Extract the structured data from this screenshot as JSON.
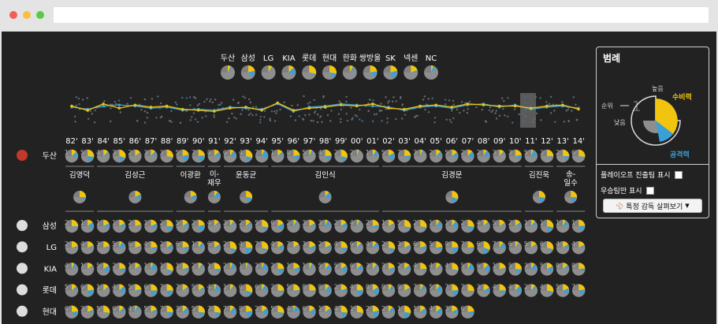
{
  "browser": {
    "url": ""
  },
  "legend": {
    "title": "범례",
    "high": "높음",
    "low": "낮음",
    "rank": "순위",
    "rank_value": "1",
    "defense": "수비력",
    "offense": "공격력",
    "playoff_label": "플레이오프 진출팀 표시",
    "champion_label": "우승팀만 표시",
    "manager_button": "특정 감독 살펴보기",
    "colors": {
      "defense": "#f1c40f",
      "offense": "#3aa0d8",
      "base": "#8e8e8e",
      "track": "#d9d9d9"
    }
  },
  "top_teams": [
    "두산",
    "삼성",
    "LG",
    "KIA",
    "롯데",
    "현대",
    "한화",
    "쌍방울",
    "SK",
    "넥센",
    "NC"
  ],
  "years": [
    "82'",
    "83'",
    "84'",
    "85'",
    "86'",
    "87'",
    "88'",
    "89'",
    "90'",
    "91'",
    "92'",
    "93'",
    "94'",
    "95'",
    "96'",
    "97'",
    "98'",
    "99'",
    "00'",
    "01'",
    "02'",
    "03'",
    "04'",
    "05'",
    "06'",
    "07'",
    "08'",
    "09'",
    "10'",
    "11'",
    "12'",
    "13'",
    "14'"
  ],
  "doosan": {
    "name": "두산",
    "ranks": [
      "1",
      "5",
      "4",
      "3",
      "2",
      "3",
      "3",
      "5",
      "7",
      "8",
      "6",
      "4",
      "7",
      "1",
      "8",
      "5",
      "4",
      "2",
      "2",
      "1",
      "5",
      "7",
      "3",
      "2",
      "5",
      "2",
      "2",
      "3",
      "3",
      "5",
      "3",
      "2",
      "6"
    ],
    "managers": [
      "김영덕",
      "김성근",
      "이광환",
      "이-재우",
      "윤동균",
      "김인식",
      "김경문",
      "김진욱",
      "송-일수"
    ]
  },
  "team_rows": [
    {
      "name": "삼성",
      "ranks": [
        "2",
        "1",
        "1",
        "1",
        "2",
        "1",
        "2",
        "5",
        "2",
        "4",
        "3",
        "2",
        "5",
        "6",
        "2",
        "3",
        "3",
        "2",
        "4",
        "2",
        "1",
        "5",
        "2",
        "1",
        "1",
        "2",
        "4",
        "5",
        "2",
        "1",
        "1",
        "1",
        "1"
      ]
    },
    {
      "name": "LG",
      "ranks": [
        "2",
        "4",
        "3",
        "5",
        "6",
        "4",
        "2",
        "6",
        "1",
        "6",
        "2",
        "4",
        "7",
        "4",
        "7",
        "3",
        "2",
        "4",
        "6",
        "4",
        "2",
        "3",
        "6",
        "5",
        "8",
        "7",
        "6",
        "7",
        "6",
        "5",
        "6",
        "4",
        "4"
      ]
    },
    {
      "name": "KIA",
      "ranks": [
        "4",
        "1",
        "5",
        "2",
        "1",
        "1",
        "1",
        "1",
        "2",
        "1",
        "2",
        "1",
        "3",
        "2",
        "1",
        "1",
        "5",
        "5",
        "6",
        "3",
        "3",
        "2",
        "4",
        "4",
        "4",
        "5",
        "6",
        "1",
        "5",
        "3",
        "5",
        "8",
        "8"
      ]
    },
    {
      "name": "롯데",
      "ranks": [
        "5",
        "6",
        "1",
        "4",
        "5",
        "6",
        "7",
        "7",
        "5",
        "4",
        "1",
        "6",
        "6",
        "2",
        "5",
        "8",
        "8",
        "2",
        "4",
        "8",
        "8",
        "8",
        "7",
        "5",
        "7",
        "7",
        "3",
        "4",
        "4",
        "2",
        "4",
        "5",
        "7"
      ]
    },
    {
      "name": "현대",
      "ranks": [
        "6",
        "3",
        "5",
        "6",
        "4",
        "5",
        "7",
        "3",
        "5",
        "7",
        "7",
        "8",
        "2",
        "5",
        "4",
        "6",
        "1",
        "4",
        "1",
        "2",
        "2",
        "1",
        "1",
        "4",
        "3",
        "6"
      ]
    }
  ],
  "chart_data": {
    "type": "small-multiples-pie",
    "description_rank": "Team rank per season (1 = best)",
    "x": [
      "82'",
      "83'",
      "84'",
      "85'",
      "86'",
      "87'",
      "88'",
      "89'",
      "90'",
      "91'",
      "92'",
      "93'",
      "94'",
      "95'",
      "96'",
      "97'",
      "98'",
      "99'",
      "00'",
      "01'",
      "02'",
      "03'",
      "04'",
      "05'",
      "06'",
      "07'",
      "08'",
      "09'",
      "10'",
      "11'",
      "12'",
      "13'",
      "14'"
    ],
    "series_defense": [
      0.5,
      0.3,
      0.6,
      0.4,
      0.55,
      0.45,
      0.5,
      0.35,
      0.3,
      0.25,
      0.4,
      0.45,
      0.3,
      0.65,
      0.3,
      0.4,
      0.45,
      0.55,
      0.5,
      0.6,
      0.4,
      0.35,
      0.5,
      0.55,
      0.45,
      0.6,
      0.55,
      0.5,
      0.5,
      0.4,
      0.5,
      0.55,
      0.35
    ],
    "series_offense": [
      0.45,
      0.35,
      0.5,
      0.55,
      0.5,
      0.4,
      0.45,
      0.3,
      0.35,
      0.3,
      0.45,
      0.4,
      0.35,
      0.6,
      0.25,
      0.45,
      0.5,
      0.6,
      0.55,
      0.5,
      0.45,
      0.3,
      0.45,
      0.5,
      0.4,
      0.55,
      0.6,
      0.45,
      0.55,
      0.35,
      0.45,
      0.5,
      0.4
    ]
  }
}
